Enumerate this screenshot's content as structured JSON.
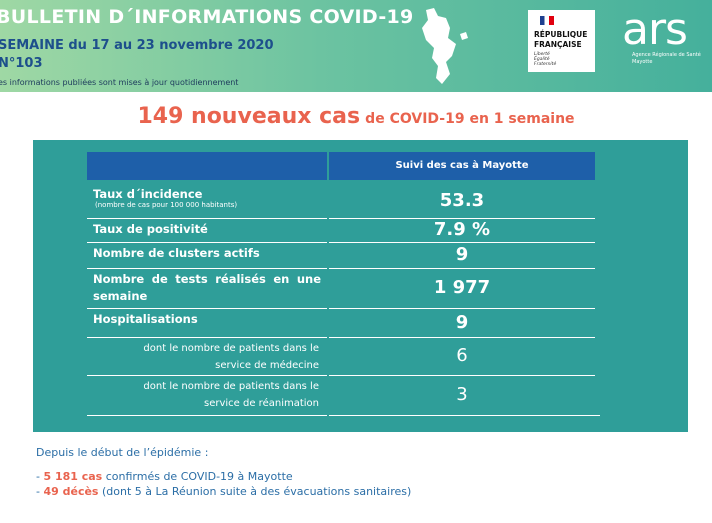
{
  "header": {
    "title": "BULLETIN D´INFORMATIONS COVID-19",
    "week": "SEMAINE du 17 au 23 novembre 2020",
    "number": "N°103",
    "note": "es informations publiées sont mises à jour quotidiennement"
  },
  "logo_rf": {
    "line1": "RÉPUBLIQUE",
    "line2": "FRANÇAISE",
    "motto": "Liberté Égalité Fraternité"
  },
  "logo_ars": {
    "name": "ars",
    "line1": "Agence Régionale de Santé",
    "line2": "Mayotte"
  },
  "headline": {
    "strong": "149 nouveaux cas",
    "rest": "de COVID-19 en 1 semaine"
  },
  "table": {
    "column_header": "Suivi des cas à Mayotte",
    "rows": [
      {
        "label": "Taux d´incidence",
        "sublabel": "(nombre de cas pour 100 000 habitants)",
        "value": "53.3"
      },
      {
        "label": "Taux de positivité",
        "value": "7.9 %"
      },
      {
        "label": "Nombre de clusters actifs",
        "value": "9"
      },
      {
        "label": "Nombre de tests réalisés en une semaine",
        "value": "1 977"
      },
      {
        "label": "Hospitalisations",
        "value": "9"
      },
      {
        "label": "dont le nombre de patients dans le service de médecine",
        "value": "6"
      },
      {
        "label": "dont le nombre de patients dans le service de réanimation",
        "value": "3"
      }
    ]
  },
  "footer": {
    "intro": "Depuis le début de l’épidémie :",
    "items": [
      {
        "strong": "5 181 cas",
        "rest": "confirmés de COVID-19 à Mayotte"
      },
      {
        "strong": "49 décès",
        "rest": "(dont 5 à La Réunion suite à des évacuations sanitaires)"
      }
    ]
  }
}
